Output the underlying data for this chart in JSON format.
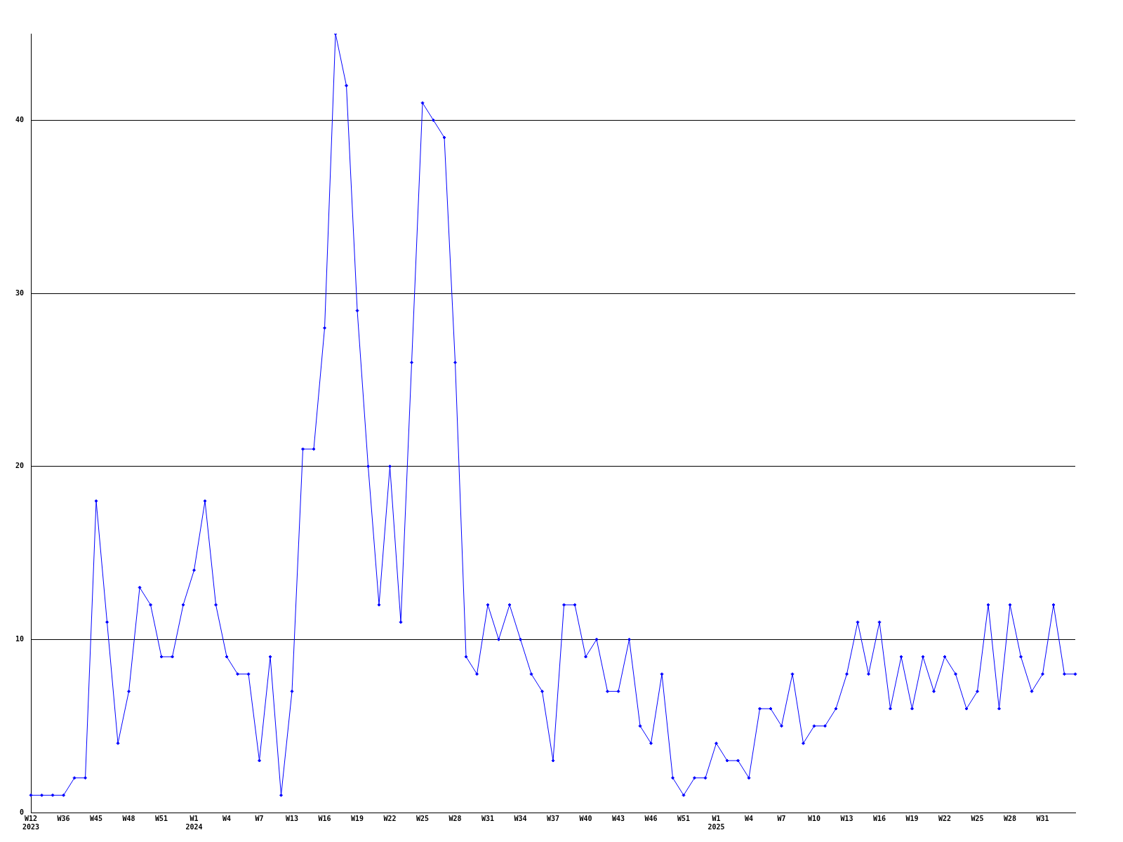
{
  "chart_data": {
    "type": "line",
    "categories": [
      "W12\n2023",
      null,
      null,
      "W36",
      null,
      null,
      "W45",
      null,
      null,
      "W48",
      null,
      null,
      "W51",
      null,
      null,
      "W1\n2024",
      null,
      null,
      "W4",
      null,
      null,
      "W7",
      null,
      null,
      "W13",
      null,
      null,
      "W16",
      null,
      null,
      "W19",
      null,
      null,
      "W22",
      null,
      null,
      "W25",
      null,
      null,
      "W28",
      null,
      null,
      "W31",
      null,
      null,
      "W34",
      null,
      null,
      "W37",
      null,
      null,
      "W40",
      null,
      null,
      "W43",
      null,
      null,
      "W46",
      null,
      null,
      "W51",
      null,
      null,
      "W1\n2025",
      null,
      null,
      "W4",
      null,
      null,
      "W7",
      null,
      null,
      "W10",
      null,
      null,
      "W13",
      null,
      null,
      "W16",
      null,
      null,
      "W19",
      null,
      null,
      "W22",
      null,
      null,
      "W25",
      null,
      null,
      "W28",
      null,
      null,
      "W31",
      null,
      null,
      null
    ],
    "series": [
      {
        "color": "#0000ff",
        "values": [
          1,
          1,
          1,
          1,
          2,
          2,
          18,
          11,
          4,
          7,
          13,
          12,
          9,
          9,
          12,
          14,
          18,
          12,
          9,
          8,
          8,
          3,
          9,
          1,
          7,
          21,
          21,
          28,
          45,
          42,
          29,
          20,
          12,
          20,
          11,
          26,
          41,
          40,
          39,
          26,
          9,
          8,
          12,
          10,
          12,
          10,
          8,
          7,
          3,
          12,
          12,
          9,
          10,
          7,
          7,
          10,
          5,
          4,
          8,
          2,
          1,
          2,
          2,
          4,
          3,
          3,
          2,
          6,
          6,
          5,
          8,
          4,
          5,
          5,
          6,
          8,
          11,
          8,
          11,
          6,
          9,
          6,
          9,
          7,
          9,
          8,
          6,
          7,
          12,
          6,
          12,
          9,
          7,
          8,
          12,
          8,
          8
        ]
      }
    ],
    "ylim": [
      0,
      45
    ],
    "yticks": [
      0,
      10,
      20,
      30,
      40
    ],
    "grid": "y",
    "marker": "diamond",
    "line_style": "solid"
  }
}
